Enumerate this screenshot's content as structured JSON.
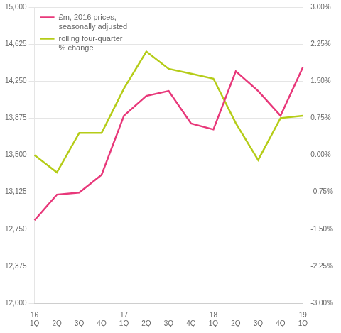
{
  "chart_data": {
    "type": "line",
    "categories": [
      "1Q",
      "2Q",
      "3Q",
      "4Q",
      "1Q",
      "2Q",
      "3Q",
      "4Q",
      "1Q",
      "2Q",
      "3Q",
      "4Q",
      "1Q"
    ],
    "annotations": [
      {
        "text": "16",
        "x": 0
      },
      {
        "text": "17",
        "x": 4
      },
      {
        "text": "18",
        "x": 8
      },
      {
        "text": "19",
        "x": 12
      }
    ],
    "series": [
      {
        "name": "£m, 2016 prices,\nseasonally adjusted",
        "color": "#e8387a",
        "values": [
          12840,
          13100,
          13120,
          13300,
          13900,
          14100,
          14150,
          13820,
          13760,
          14350,
          14150,
          13900,
          14390
        ]
      },
      {
        "name": "rolling four-quarter\n% change",
        "color": "#b5cc18",
        "axis": "y2",
        "values": [
          0.0,
          -0.35,
          0.45,
          0.45,
          1.35,
          2.1,
          1.75,
          1.65,
          1.55,
          0.65,
          -0.1,
          0.75,
          0.8
        ]
      }
    ],
    "ylim": [
      12000,
      15000
    ],
    "yticks": [
      {
        "value": 12000,
        "label": "12,000"
      },
      {
        "value": 12375,
        "label": "12,375"
      },
      {
        "value": 12750,
        "label": "12,750"
      },
      {
        "value": 13125,
        "label": "13,125"
      },
      {
        "value": 13500,
        "label": "13,500"
      },
      {
        "value": 13875,
        "label": "13,875"
      },
      {
        "value": 14250,
        "label": "14,250"
      },
      {
        "value": 14625,
        "label": "14,625"
      },
      {
        "value": 15000,
        "label": "15,000"
      }
    ],
    "y2lim": [
      -3.0,
      3.0
    ],
    "y2ticks": [
      {
        "value": -3.0,
        "label": "-3.00%"
      },
      {
        "value": -2.25,
        "label": "-2.25%"
      },
      {
        "value": -1.5,
        "label": "-1.50%"
      },
      {
        "value": -0.75,
        "label": "-0.75%"
      },
      {
        "value": 0.0,
        "label": "0.00%"
      },
      {
        "value": 0.75,
        "label": "0.75%"
      },
      {
        "value": 1.5,
        "label": "1.50%"
      },
      {
        "value": 2.25,
        "label": "2.25%"
      },
      {
        "value": 3.0,
        "label": "3.00%"
      }
    ],
    "grid": true,
    "legend": "upper left"
  }
}
